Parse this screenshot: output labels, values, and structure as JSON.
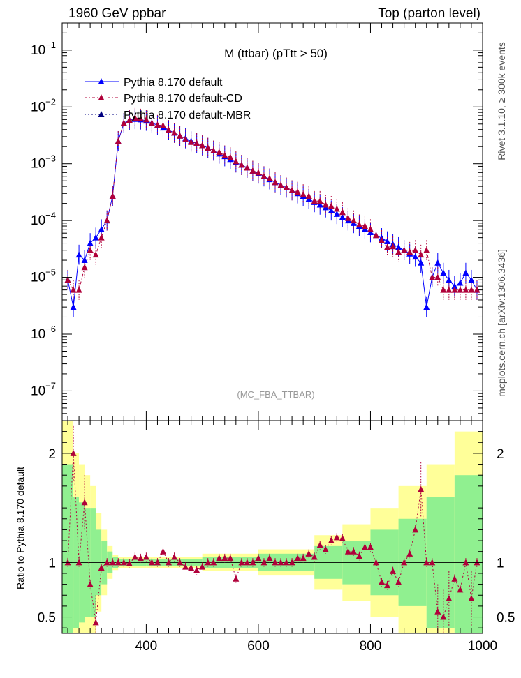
{
  "header": {
    "left": "1960 GeV ppbar",
    "right": "Top (parton level)"
  },
  "side": {
    "rivet": "Rivet 3.1.10, ≥ 300k events",
    "mcplots": "mcplots.cern.ch [arXiv:1306.3436]"
  },
  "colors": {
    "default": "#0000ff",
    "cd": "#b0003a",
    "mbr": "#000080",
    "band_inner": "#90f090",
    "band_outer": "#ffff99"
  },
  "chart_data": [
    {
      "type": "line",
      "title": "M (ttbar) (pTtt > 50)",
      "watermark": "(MC_FBA_TTBAR)",
      "xlim": [
        250,
        1000
      ],
      "ylim": [
        3e-08,
        0.3
      ],
      "yscale": "log",
      "ytick_labels": [
        "10^-7",
        "10^-6",
        "10^-5",
        "10^-4",
        "10^-3",
        "10^-2",
        "10^-1"
      ],
      "legend": "top-left",
      "series": [
        {
          "name": "Pythia 8.170 default",
          "style": "solid",
          "marker": "triangle",
          "x": [
            260,
            270,
            280,
            290,
            300,
            310,
            320,
            330,
            340,
            350,
            360,
            370,
            380,
            390,
            400,
            410,
            420,
            430,
            440,
            450,
            460,
            470,
            480,
            490,
            500,
            510,
            520,
            530,
            540,
            550,
            560,
            570,
            580,
            590,
            600,
            610,
            620,
            630,
            640,
            650,
            660,
            670,
            680,
            690,
            700,
            710,
            720,
            730,
            740,
            750,
            760,
            770,
            780,
            790,
            800,
            810,
            820,
            830,
            840,
            850,
            860,
            870,
            880,
            890,
            900,
            910,
            920,
            930,
            940,
            950,
            960,
            970,
            980,
            990
          ],
          "y": [
            9e-06,
            3e-06,
            2.5e-05,
            2e-05,
            4e-05,
            5e-05,
            7e-05,
            0.0001,
            0.00027,
            0.0025,
            0.0052,
            0.0059,
            0.0061,
            0.006,
            0.0057,
            0.0052,
            0.0048,
            0.0043,
            0.0039,
            0.0035,
            0.0031,
            0.0028,
            0.0025,
            0.0023,
            0.0021,
            0.0019,
            0.0017,
            0.0015,
            0.00135,
            0.0012,
            0.00105,
            0.00095,
            0.00085,
            0.00075,
            0.00067,
            0.0006,
            0.00053,
            0.00047,
            0.00042,
            0.00038,
            0.00034,
            0.0003,
            0.00027,
            0.00024,
            0.00021,
            0.00019,
            0.00017,
            0.00015,
            0.00013,
            0.000115,
            0.0001,
            9e-05,
            8e-05,
            7e-05,
            6.2e-05,
            5.5e-05,
            4.9e-05,
            4.3e-05,
            3.8e-05,
            3.4e-05,
            3e-05,
            2.6e-05,
            2.3e-05,
            1.8e-05,
            3e-06,
            1e-05,
            1.8e-05,
            1.2e-05,
            9e-06,
            7e-06,
            8e-06,
            1.2e-05,
            9e-06,
            6e-06
          ]
        },
        {
          "name": "Pythia 8.170 default-CD",
          "style": "dash-dot",
          "marker": "triangle",
          "x": [
            260,
            270,
            280,
            290,
            300,
            310,
            320,
            330,
            340,
            350,
            360,
            370,
            380,
            390,
            400,
            410,
            420,
            430,
            440,
            450,
            460,
            470,
            480,
            490,
            500,
            510,
            520,
            530,
            540,
            550,
            560,
            570,
            580,
            590,
            600,
            610,
            620,
            630,
            640,
            650,
            660,
            670,
            680,
            690,
            700,
            710,
            720,
            730,
            740,
            750,
            760,
            770,
            780,
            790,
            800,
            810,
            820,
            830,
            840,
            850,
            860,
            870,
            880,
            890,
            900,
            910,
            920,
            930,
            940,
            950,
            960,
            970,
            980,
            990
          ],
          "y": [
            9e-06,
            6e-06,
            6e-06,
            1.5e-05,
            3e-05,
            2.5e-05,
            5e-05,
            0.0001,
            0.00027,
            0.0025,
            0.0052,
            0.0059,
            0.0064,
            0.0062,
            0.006,
            0.0052,
            0.0048,
            0.0047,
            0.0039,
            0.0035,
            0.0031,
            0.0027,
            0.0024,
            0.0023,
            0.0021,
            0.0019,
            0.0017,
            0.0016,
            0.0014,
            0.0013,
            0.0011,
            0.00095,
            0.00085,
            0.00075,
            0.0007,
            0.0006,
            0.00055,
            0.00047,
            0.00042,
            0.00038,
            0.00034,
            0.00032,
            0.00029,
            0.00027,
            0.00022,
            0.00022,
            0.00019,
            0.00018,
            0.00016,
            0.00014,
            0.00011,
            0.0001,
            8.5e-05,
            8e-05,
            7e-05,
            5.5e-05,
            4.5e-05,
            3.4e-05,
            3.5e-05,
            2.8e-05,
            3e-05,
            2.8e-05,
            3e-05,
            2.5e-05,
            3e-05,
            1e-05,
            1e-05,
            6e-06,
            6e-06,
            6e-06,
            6e-06,
            6e-06,
            6e-06,
            6e-06
          ]
        },
        {
          "name": "Pythia 8.170 default-MBR",
          "style": "dotted",
          "marker": "triangle",
          "x": [],
          "y": []
        }
      ]
    },
    {
      "type": "line",
      "ylabel": "Ratio to Pythia 8.170 default",
      "xlabel": "",
      "xlim": [
        250,
        1000
      ],
      "ylim": [
        0.35,
        2.3
      ],
      "yticks": [
        0.5,
        1,
        2
      ],
      "ytick_labels": [
        "0.5",
        "1",
        "2"
      ],
      "xticks": [
        400,
        600,
        800,
        1000
      ],
      "xtick_labels": [
        "400",
        "600",
        "800",
        "1000"
      ],
      "reference": 1,
      "ratio_series": {
        "name": "Pythia 8.170 default-CD",
        "x": [
          260,
          270,
          280,
          290,
          300,
          310,
          320,
          330,
          340,
          350,
          360,
          370,
          380,
          390,
          400,
          410,
          420,
          430,
          440,
          450,
          460,
          470,
          480,
          490,
          500,
          510,
          520,
          530,
          540,
          550,
          560,
          570,
          580,
          590,
          600,
          610,
          620,
          630,
          640,
          650,
          660,
          670,
          680,
          690,
          700,
          710,
          720,
          730,
          740,
          750,
          760,
          770,
          780,
          790,
          800,
          810,
          820,
          830,
          840,
          850,
          860,
          870,
          880,
          890,
          900,
          910,
          920,
          930,
          940,
          950,
          960,
          970,
          980,
          990
        ],
        "y": [
          1.0,
          2.0,
          1.0,
          1.55,
          0.8,
          0.45,
          0.95,
          1.0,
          1.0,
          1.0,
          1.0,
          0.99,
          1.05,
          1.04,
          1.05,
          1.0,
          1.0,
          1.1,
          1.0,
          1.05,
          1.0,
          0.96,
          0.95,
          0.93,
          0.96,
          1.0,
          1.0,
          1.04,
          1.04,
          1.04,
          0.85,
          1.0,
          1.0,
          1.0,
          1.04,
          1.0,
          1.04,
          1.0,
          1.0,
          1.0,
          1.0,
          1.04,
          1.04,
          1.08,
          1.05,
          1.16,
          1.12,
          1.2,
          1.23,
          1.22,
          1.1,
          1.1,
          1.06,
          1.14,
          1.14,
          1.0,
          0.82,
          0.79,
          0.92,
          0.82,
          1.0,
          1.08,
          1.3,
          1.67,
          1.0,
          1.0,
          0.55,
          0.5,
          0.67,
          0.85,
          0.75,
          1.0,
          0.67,
          1.0
        ]
      },
      "bands": {
        "x_edges": [
          250,
          260,
          270,
          280,
          290,
          300,
          310,
          320,
          330,
          340,
          350,
          400,
          500,
          600,
          700,
          750,
          800,
          850,
          900,
          950,
          1000
        ],
        "inner_halfwidth": [
          0.9,
          0.9,
          0.6,
          0.55,
          0.5,
          0.5,
          0.3,
          0.2,
          0.1,
          0.05,
          0.03,
          0.03,
          0.05,
          0.08,
          0.15,
          0.2,
          0.3,
          0.4,
          0.6,
          0.8
        ],
        "outer_halfwidth": [
          1.3,
          1.3,
          1.0,
          0.9,
          0.8,
          0.7,
          0.45,
          0.3,
          0.15,
          0.07,
          0.05,
          0.05,
          0.08,
          0.12,
          0.25,
          0.35,
          0.5,
          0.7,
          0.9,
          1.2
        ]
      }
    }
  ]
}
